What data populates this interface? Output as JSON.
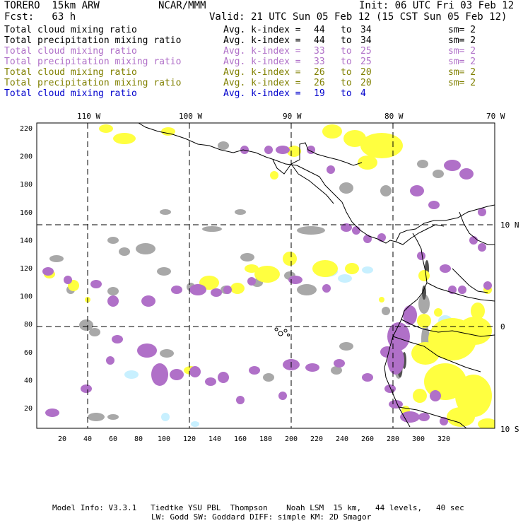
{
  "header": {
    "model": "TORERO  15km ARW",
    "org": "NCAR/MMM",
    "init": "Init: 06 UTC Fri 03 Feb 12",
    "fcst": "Fcst:   63 h",
    "valid": "Valid: 21 UTC Sun 05 Feb 12 (15 CST Sun 05 Feb 12)"
  },
  "legend": [
    {
      "field": "Total cloud mixing ratio",
      "avg": "Avg. k-index =",
      "from": "44",
      "to_word": "to",
      "to": "34",
      "sm": "sm= 2",
      "color": "#000000"
    },
    {
      "field": "Total precipitation mixing ratio",
      "avg": "Avg. k-index =",
      "from": "44",
      "to_word": "to",
      "to": "34",
      "sm": "sm= 2",
      "color": "#000000"
    },
    {
      "field": "Total cloud mixing ratio",
      "avg": "Avg. k-index =",
      "from": "33",
      "to_word": "to",
      "to": "25",
      "sm": "sm= 2",
      "color": "#b070c8"
    },
    {
      "field": "Total precipitation mixing ratio",
      "avg": "Avg. k-index =",
      "from": "33",
      "to_word": "to",
      "to": "25",
      "sm": "sm= 2",
      "color": "#b070c8"
    },
    {
      "field": "Total cloud mixing ratio",
      "avg": "Avg. k-index =",
      "from": "26",
      "to_word": "to",
      "to": "20",
      "sm": "sm= 2",
      "color": "#808000"
    },
    {
      "field": "Total precipitation mixing ratio",
      "avg": "Avg. k-index =",
      "from": "26",
      "to_word": "to",
      "to": "20",
      "sm": "sm= 2",
      "color": "#808000"
    },
    {
      "field": "Total cloud mixing ratio",
      "avg": "Avg. k-index =",
      "from": "19",
      "to_word": "to",
      "to": "4",
      "sm": "",
      "color": "#0000cc"
    }
  ],
  "map": {
    "lon_labels": [
      "110 W",
      "100 W",
      "90 W",
      "80 W",
      "70 W"
    ],
    "lat_labels": [
      "10 N",
      "0",
      "10 S"
    ],
    "x_ticks": [
      "20",
      "40",
      "60",
      "80",
      "100",
      "120",
      "140",
      "160",
      "180",
      "200",
      "220",
      "240",
      "260",
      "280",
      "300",
      "320"
    ],
    "y_ticks": [
      "220",
      "200",
      "180",
      "160",
      "140",
      "120",
      "100",
      "80",
      "60",
      "40",
      "20"
    ],
    "colors": {
      "gray": "#a8a8a8",
      "purple": "#b070c8",
      "yellow": "#ffff40",
      "light_blue": "#c8f0ff",
      "dark_gray": "#505050"
    }
  },
  "footer": {
    "line1": "Model Info: V3.3.1   Tiedtke YSU PBL  Thompson    Noah LSM  15 km,   44 levels,   40 sec",
    "line2": "LW: Godd SW: Goddard DIFF: simple KM: 2D Smagor"
  }
}
